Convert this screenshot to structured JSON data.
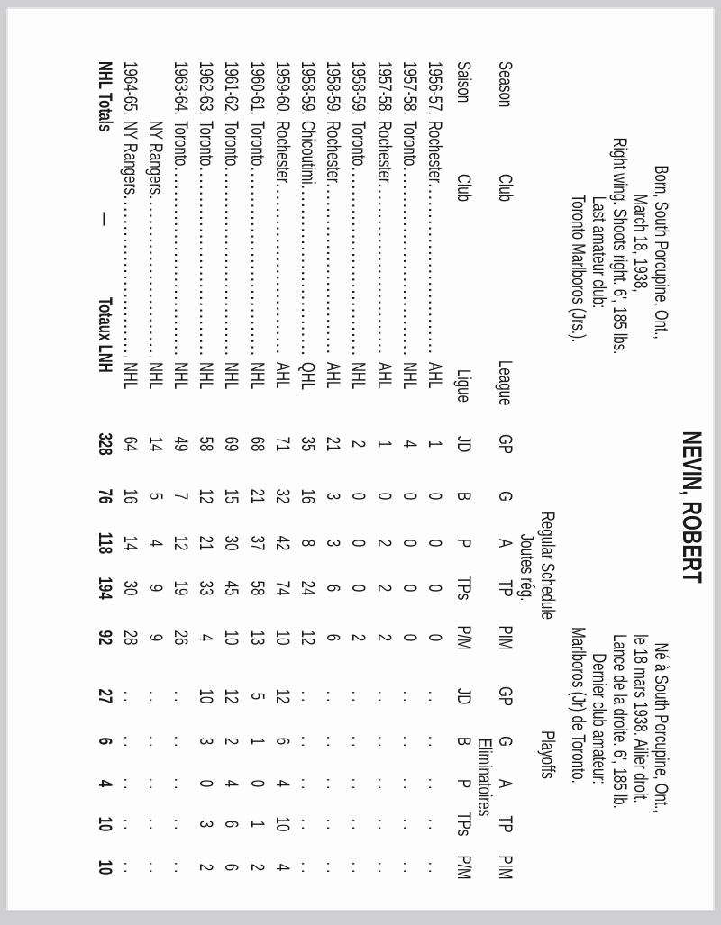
{
  "player": {
    "name": "NEVIN, ROBERT"
  },
  "bio_en": [
    "Born, South Porcupine, Ont.,",
    "March 18, 1938,",
    "Right wing. Shoots right. 6', 185 lbs.",
    "Last amateur club:",
    "Toronto Marlboros (Jrs.)."
  ],
  "bio_fr": [
    "Né à South Porcupine, Ont.,",
    "le 18 mars 1938. Ailier droit.",
    "Lance de la droite. 6', 185 lb.",
    "Dernier club amateur:",
    "Marlboros (Jr) de Toronto."
  ],
  "headers": {
    "season": "Season",
    "saison": "Saison",
    "club": "Club",
    "league": "League",
    "ligue": "Ligue",
    "regular": "Regular Schedule",
    "regular_fr": "Joutes rég.",
    "playoffs": "Playoffs",
    "playoffs_fr": "Eliminatoires",
    "cols_en": [
      "GP",
      "G",
      "A",
      "TP",
      "PIM"
    ],
    "cols_fr": [
      "JD",
      "B",
      "P",
      "TPs",
      "P/M"
    ]
  },
  "rows": [
    {
      "season": "1956-57.",
      "club": "Rochester",
      "league": "AHL",
      "reg": [
        "1",
        "0",
        "0",
        "0",
        "0"
      ],
      "po": [
        ". .",
        ". .",
        ". .",
        ". .",
        ". ."
      ]
    },
    {
      "season": "1957-58.",
      "club": "Toronto",
      "league": "NHL",
      "reg": [
        "4",
        "0",
        "0",
        "0",
        "0"
      ],
      "po": [
        ". .",
        ". .",
        ". .",
        ". .",
        ". ."
      ]
    },
    {
      "season": "1957-58.",
      "club": "Rochester",
      "league": "AHL",
      "reg": [
        "1",
        "0",
        "2",
        "2",
        "2"
      ],
      "po": [
        ". .",
        ". .",
        ". .",
        ". .",
        ". ."
      ]
    },
    {
      "season": "1958-59.",
      "club": "Toronto",
      "league": "NHL",
      "reg": [
        "2",
        "0",
        "0",
        "0",
        "2"
      ],
      "po": [
        ". .",
        ". .",
        ". .",
        ". .",
        ". ."
      ]
    },
    {
      "season": "1958-59.",
      "club": "Rochester",
      "league": "AHL",
      "reg": [
        "21",
        "3",
        "3",
        "6",
        "6"
      ],
      "po": [
        ". .",
        ". .",
        ". .",
        ". .",
        ". ."
      ]
    },
    {
      "season": "1958-59.",
      "club": "Chicoutimi",
      "league": "QHL",
      "reg": [
        "35",
        "16",
        "8",
        "24",
        "12"
      ],
      "po": [
        ". .",
        ". .",
        ". .",
        ". .",
        ". ."
      ]
    },
    {
      "season": "1959-60.",
      "club": "Rochester",
      "league": "AHL",
      "reg": [
        "71",
        "32",
        "42",
        "74",
        "10"
      ],
      "po": [
        "12",
        "6",
        "4",
        "10",
        "4"
      ]
    },
    {
      "season": "1960-61.",
      "club": "Toronto",
      "league": "NHL",
      "reg": [
        "68",
        "21",
        "37",
        "58",
        "13"
      ],
      "po": [
        "5",
        "1",
        "0",
        "1",
        "2"
      ]
    },
    {
      "season": "1961-62.",
      "club": "Toronto",
      "league": "NHL",
      "reg": [
        "69",
        "15",
        "30",
        "45",
        "10"
      ],
      "po": [
        "12",
        "2",
        "4",
        "6",
        "6"
      ]
    },
    {
      "season": "1962-63.",
      "club": "Toronto",
      "league": "NHL",
      "reg": [
        "58",
        "12",
        "21",
        "33",
        "4"
      ],
      "po": [
        "10",
        "3",
        "0",
        "3",
        "2"
      ]
    },
    {
      "season": "1963-64.",
      "club": "Toronto",
      "league": "NHL",
      "reg": [
        "49",
        "7",
        "12",
        "19",
        "26"
      ],
      "po": [
        ". .",
        ". .",
        ". .",
        ". .",
        ". ."
      ]
    },
    {
      "season": "",
      "club": "NY Rangers",
      "league": "NHL",
      "reg": [
        "14",
        "5",
        "4",
        "9",
        "9"
      ],
      "po": [
        ". .",
        ". .",
        ". .",
        ". .",
        ". ."
      ]
    },
    {
      "season": "1964-65.",
      "club": "NY Rangers",
      "league": "NHL",
      "reg": [
        "64",
        "16",
        "14",
        "30",
        "28"
      ],
      "po": [
        ". .",
        ". .",
        ". .",
        ". .",
        ". ."
      ]
    }
  ],
  "totals": {
    "label": "NHL Totals",
    "dash": "—",
    "label_fr": "Totaux LNH",
    "reg": [
      "328",
      "76",
      "118",
      "194",
      "92"
    ],
    "po": [
      "27",
      "6",
      "4",
      "10",
      "10"
    ]
  }
}
